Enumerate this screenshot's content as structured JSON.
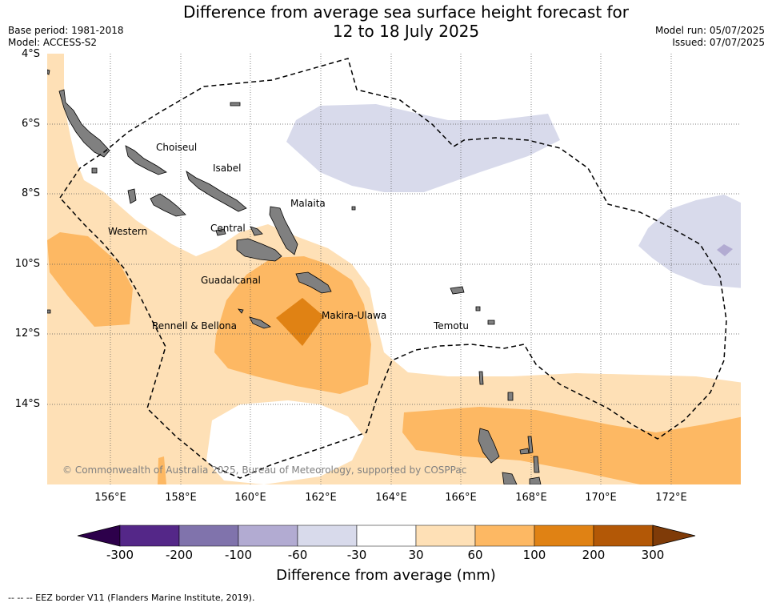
{
  "title_line1": "Difference from average sea surface height forecast for",
  "title_line2": "12 to 18 July 2025",
  "base_period": "Base period: 1981-2018",
  "model": "Model: ACCESS-S2",
  "model_run": "Model run: 05/07/2025",
  "issued": "Issued: 07/07/2025",
  "lat_labels": [
    "4°S",
    "6°S",
    "8°S",
    "10°S",
    "12°S",
    "14°S"
  ],
  "lon_labels": [
    "156°E",
    "158°E",
    "160°E",
    "162°E",
    "164°E",
    "166°E",
    "168°E",
    "170°E",
    "172°E"
  ],
  "regions": {
    "choiseul": "Choiseul",
    "isabel": "Isabel",
    "malaita": "Malaita",
    "western": "Western",
    "central": "Central",
    "guadalcanal": "Guadalcanal",
    "makira": "Makira-Ulawa",
    "rennell": "Rennell & Bellona",
    "temotu": "Temotu"
  },
  "copyright": "© Commonwealth of Australia 2025, Bureau of Meteorology, supported by COSPPac",
  "colorbar": {
    "ticks": [
      "-300",
      "-200",
      "-100",
      "-60",
      "-30",
      "30",
      "60",
      "100",
      "200",
      "300"
    ],
    "colors": [
      "#2d004b",
      "#542788",
      "#8073ac",
      "#b2abd2",
      "#d8daeb",
      "#ffffff",
      "#fee0b6",
      "#fdb863",
      "#e08214",
      "#b35806",
      "#7f3b08"
    ],
    "title": "Difference from average (mm)"
  },
  "footnote": "--  --  -- EEZ border V11 (Flanders Marine Institute, 2019).",
  "colors": {
    "land": "#808080",
    "grid": "#555555"
  }
}
